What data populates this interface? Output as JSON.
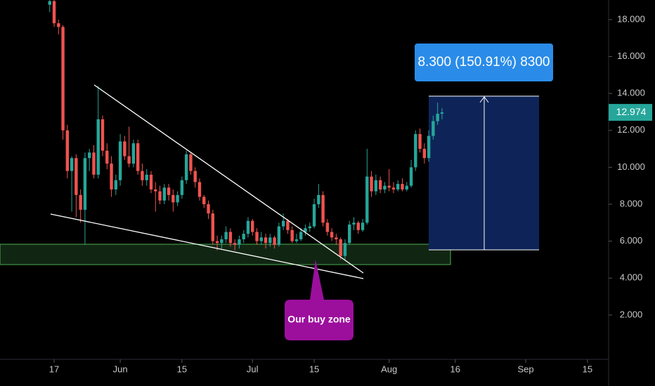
{
  "chart_data": {
    "type": "candlestick",
    "xlim": [
      3.72,
      141.8
    ],
    "xticks": [
      {
        "value": 16,
        "label": "17"
      },
      {
        "value": 31,
        "label": "Jun"
      },
      {
        "value": 45,
        "label": "15"
      },
      {
        "value": 61,
        "label": "Jul"
      },
      {
        "value": 75,
        "label": "15"
      },
      {
        "value": 92,
        "label": "Aug"
      },
      {
        "value": 107,
        "label": "16"
      },
      {
        "value": 123,
        "label": "Sep"
      },
      {
        "value": 137,
        "label": "15"
      }
    ],
    "ylim": [
      -0.4,
      19.06
    ],
    "yticks": [
      {
        "value": 2,
        "label": "2.000"
      },
      {
        "value": 4,
        "label": "4.000"
      },
      {
        "value": 6,
        "label": "6.000"
      },
      {
        "value": 8,
        "label": "8.000"
      },
      {
        "value": 10,
        "label": "10.000"
      },
      {
        "value": 12,
        "label": "12.000"
      },
      {
        "value": 14,
        "label": "14.000"
      },
      {
        "value": 16,
        "label": "16.000"
      },
      {
        "value": 18,
        "label": "18.000"
      }
    ],
    "up_color": "#26a69a",
    "down_color": "#ef5350",
    "last_price": 12.974,
    "measure_label": "8.300 (150.91%) 8300",
    "callout": "Our buy zone",
    "candles": [
      [
        15,
        18.8,
        19.3,
        18.4,
        19.0
      ],
      [
        16,
        19.0,
        19.3,
        17.6,
        17.8
      ],
      [
        17,
        17.8,
        18.0,
        17.2,
        17.6
      ],
      [
        18,
        17.6,
        17.7,
        11.5,
        12.0
      ],
      [
        19,
        12.0,
        12.3,
        9.4,
        9.8
      ],
      [
        20,
        9.8,
        10.6,
        7.6,
        10.5
      ],
      [
        21,
        10.5,
        10.7,
        7.3,
        8.5
      ],
      [
        22,
        8.5,
        8.8,
        7.0,
        7.7
      ],
      [
        23,
        7.7,
        10.8,
        5.8,
        10.5
      ],
      [
        24,
        10.5,
        11.0,
        9.8,
        10.8
      ],
      [
        25,
        10.8,
        11.2,
        9.4,
        9.6
      ],
      [
        26,
        9.6,
        14.4,
        9.4,
        12.6
      ],
      [
        27,
        12.6,
        12.8,
        10.6,
        10.9
      ],
      [
        28,
        10.9,
        11.3,
        9.9,
        10.2
      ],
      [
        29,
        10.2,
        10.6,
        8.4,
        8.8
      ],
      [
        30,
        8.8,
        9.6,
        8.5,
        9.3
      ],
      [
        31,
        9.3,
        11.8,
        9.0,
        11.4
      ],
      [
        32,
        11.4,
        11.7,
        10.4,
        10.6
      ],
      [
        33,
        10.6,
        12.2,
        10.0,
        10.2
      ],
      [
        34,
        10.2,
        11.5,
        10.0,
        11.3
      ],
      [
        35,
        11.3,
        11.5,
        9.6,
        9.8
      ],
      [
        36,
        9.8,
        10.2,
        9.0,
        9.3
      ],
      [
        37,
        9.3,
        9.9,
        9.0,
        9.6
      ],
      [
        38,
        9.6,
        9.8,
        8.6,
        8.8
      ],
      [
        39,
        8.8,
        9.2,
        7.6,
        8.7
      ],
      [
        40,
        8.7,
        9.0,
        8.0,
        8.2
      ],
      [
        41,
        8.2,
        9.1,
        8.0,
        8.9
      ],
      [
        42,
        8.9,
        9.1,
        8.2,
        8.5
      ],
      [
        43,
        8.5,
        8.8,
        7.6,
        8.1
      ],
      [
        44,
        8.1,
        8.7,
        7.9,
        8.5
      ],
      [
        45,
        8.5,
        9.5,
        8.3,
        9.3
      ],
      [
        46,
        9.3,
        10.9,
        9.1,
        10.7
      ],
      [
        47,
        10.7,
        10.8,
        9.6,
        9.8
      ],
      [
        48,
        9.8,
        10.0,
        8.9,
        9.2
      ],
      [
        49,
        9.2,
        9.4,
        8.2,
        8.4
      ],
      [
        50,
        8.4,
        8.5,
        7.8,
        8.0
      ],
      [
        51,
        8.0,
        8.2,
        7.2,
        7.5
      ],
      [
        52,
        7.5,
        7.7,
        5.8,
        6.0
      ],
      [
        53,
        6.0,
        6.3,
        5.5,
        5.9
      ],
      [
        54,
        5.9,
        6.3,
        5.6,
        6.1
      ],
      [
        55,
        6.1,
        6.8,
        5.9,
        6.5
      ],
      [
        56,
        6.5,
        6.7,
        5.7,
        5.9
      ],
      [
        57,
        5.9,
        6.1,
        5.5,
        5.8
      ],
      [
        58,
        5.8,
        6.3,
        5.6,
        6.1
      ],
      [
        59,
        6.1,
        6.6,
        5.9,
        6.4
      ],
      [
        60,
        6.4,
        7.3,
        6.2,
        7.1
      ],
      [
        61,
        7.1,
        7.2,
        6.3,
        6.5
      ],
      [
        62,
        6.5,
        6.7,
        5.8,
        6.0
      ],
      [
        63,
        6.0,
        6.5,
        5.8,
        6.2
      ],
      [
        64,
        6.2,
        6.4,
        5.6,
        5.9
      ],
      [
        65,
        5.9,
        6.4,
        5.7,
        6.2
      ],
      [
        66,
        6.2,
        6.3,
        5.6,
        5.8
      ],
      [
        67,
        5.8,
        7.0,
        5.7,
        6.8
      ],
      [
        68,
        6.8,
        7.5,
        6.6,
        7.1
      ],
      [
        69,
        7.1,
        7.2,
        6.4,
        6.6
      ],
      [
        70,
        6.6,
        6.8,
        5.9,
        6.0
      ],
      [
        71,
        6.0,
        6.4,
        5.9,
        6.1
      ],
      [
        72,
        6.1,
        6.7,
        6.0,
        6.5
      ],
      [
        73,
        6.5,
        6.9,
        6.3,
        6.7
      ],
      [
        74,
        6.7,
        7.0,
        6.5,
        6.8
      ],
      [
        75,
        6.8,
        8.3,
        6.7,
        8.0
      ],
      [
        76,
        8.0,
        9.1,
        7.8,
        8.5
      ],
      [
        77,
        8.5,
        8.7,
        6.8,
        7.0
      ],
      [
        78,
        7.0,
        7.2,
        6.3,
        6.5
      ],
      [
        79,
        6.5,
        6.7,
        6.0,
        6.2
      ],
      [
        80,
        6.2,
        6.4,
        5.8,
        6.1
      ],
      [
        81,
        6.1,
        6.2,
        5.0,
        5.2
      ],
      [
        82,
        5.2,
        6.1,
        5.0,
        5.9
      ],
      [
        83,
        5.9,
        7.1,
        5.8,
        6.9
      ],
      [
        84,
        6.9,
        7.3,
        6.6,
        7.0
      ],
      [
        85,
        7.0,
        7.1,
        6.4,
        6.6
      ],
      [
        86,
        6.6,
        7.2,
        6.5,
        7.0
      ],
      [
        87,
        7.0,
        11.0,
        6.9,
        9.5
      ],
      [
        88,
        9.5,
        9.8,
        8.4,
        8.7
      ],
      [
        89,
        8.7,
        9.6,
        8.5,
        9.3
      ],
      [
        90,
        9.3,
        9.5,
        8.6,
        8.8
      ],
      [
        91,
        8.8,
        9.2,
        8.6,
        9.0
      ],
      [
        92,
        9.0,
        9.9,
        8.7,
        8.9
      ],
      [
        93,
        8.9,
        9.2,
        8.6,
        8.8
      ],
      [
        94,
        8.8,
        9.3,
        8.7,
        9.1
      ],
      [
        95,
        9.1,
        9.4,
        8.7,
        8.8
      ],
      [
        96,
        8.8,
        9.2,
        8.7,
        9.0
      ],
      [
        97,
        9.0,
        10.4,
        8.9,
        10.0
      ],
      [
        98,
        10.0,
        12.0,
        9.8,
        11.8
      ],
      [
        99,
        11.8,
        12.1,
        10.8,
        11.0
      ],
      [
        100,
        11.0,
        11.3,
        10.2,
        10.5
      ],
      [
        101,
        10.5,
        12.0,
        10.3,
        11.7
      ],
      [
        102,
        11.7,
        12.8,
        11.5,
        12.5
      ],
      [
        103,
        12.5,
        13.5,
        12.3,
        12.9
      ],
      [
        104,
        12.9,
        13.2,
        12.6,
        12.974
      ]
    ]
  }
}
